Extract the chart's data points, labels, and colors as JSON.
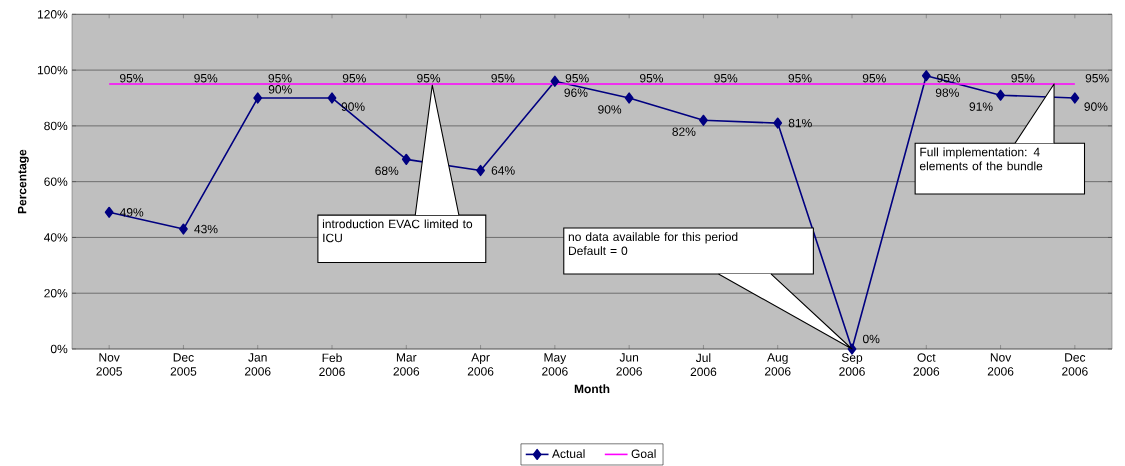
{
  "chart_data": {
    "type": "line",
    "xlabel": "Month",
    "ylabel": "Percentage",
    "categories": [
      "Nov 2005",
      "Dec 2005",
      "Jan 2006",
      "Feb 2006",
      "Mar 2006",
      "Apr 2006",
      "May 2006",
      "Jun 2006",
      "Jul 2006",
      "Aug 2006",
      "Sep 2006",
      "Oct 2006",
      "Nov 2006",
      "Dec 2006"
    ],
    "series": [
      {
        "name": "Actual",
        "color": "#000080",
        "marker": "diamond",
        "values": [
          49,
          43,
          90,
          90,
          68,
          64,
          96,
          90,
          82,
          81,
          0,
          98,
          91,
          90
        ],
        "value_labels": [
          "49%",
          "43%",
          "90%",
          "90%",
          "68%",
          "64%",
          "96%",
          "90%",
          "82%",
          "81%",
          "0%",
          "98%",
          "91%",
          "90%"
        ]
      },
      {
        "name": "Goal",
        "color": "#ff00ff",
        "marker": "none",
        "values": [
          95,
          95,
          95,
          95,
          95,
          95,
          95,
          95,
          95,
          95,
          95,
          95,
          95,
          95
        ],
        "value_labels": [
          "95%",
          "95%",
          "95%",
          "95%",
          "95%",
          "95%",
          "95%",
          "95%",
          "95%",
          "95%",
          "95%",
          "95%",
          "95%",
          "95%"
        ]
      }
    ],
    "ylim": [
      0,
      120
    ],
    "yticks": [
      {
        "value": 0,
        "label": "0%"
      },
      {
        "value": 20,
        "label": "20%"
      },
      {
        "value": 40,
        "label": "40%"
      },
      {
        "value": 60,
        "label": "60%"
      },
      {
        "value": 80,
        "label": "80%"
      },
      {
        "value": 100,
        "label": "100%"
      },
      {
        "value": 120,
        "label": "120%"
      }
    ],
    "grid": "y",
    "legend": "bottom",
    "annotations": [
      "introduction EVAC limited to ICU",
      "no data available for this period Default = 0",
      "Full implementation: 4 elements of the bundle"
    ]
  }
}
